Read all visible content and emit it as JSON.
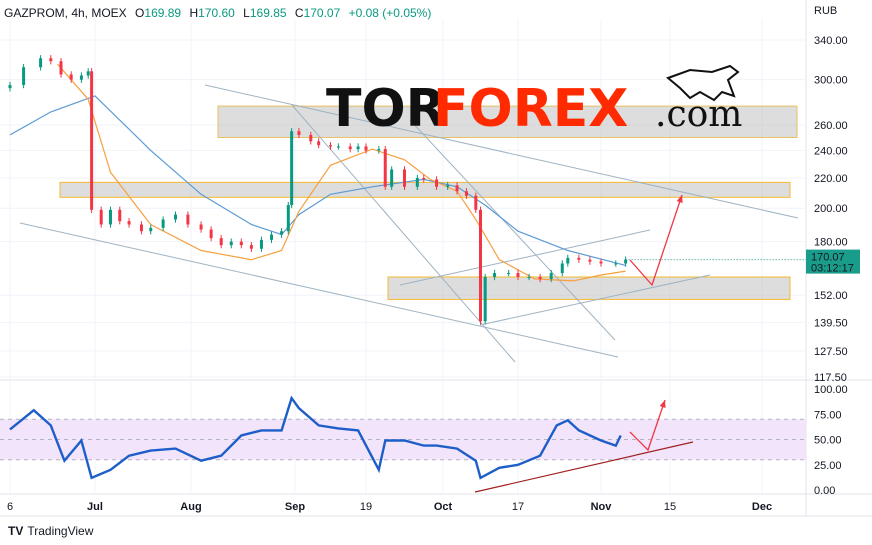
{
  "header": {
    "symbol": "GAZPROM, 4h, MOEX",
    "open_label": "O",
    "open": "169.89",
    "high_label": "H",
    "high": "170.60",
    "low_label": "L",
    "low": "169.85",
    "close_label": "C",
    "close": "170.07",
    "change": "+0.08 (+0.05%)"
  },
  "watermark": {
    "part1": "TOR",
    "part2": "FOREX",
    ".com": ".com",
    "colors": {
      "part1": "#111111",
      "part2": "#ff2a00"
    }
  },
  "footer": {
    "brand": "TradingView"
  },
  "colors": {
    "up": "#089981",
    "down": "#f23645",
    "ma_fast": "#f7a040",
    "ma_slow": "#5b9bd5",
    "rsi": "#1e5ec8",
    "arrow": "#f23645",
    "price_label": "#1a9c8a",
    "rsi_band": "#f1e4fb"
  },
  "chart_data": [
    {
      "type": "candlestick",
      "currency": "RUB",
      "y_scale": "log",
      "y_ticks": [
        "340.00",
        "300.00",
        "260.00",
        "240.00",
        "220.00",
        "200.00",
        "180.00",
        "152.00",
        "139.50",
        "127.50",
        "117.50"
      ],
      "x_ticks": [
        "6",
        "Jul",
        "Aug",
        "Sep",
        "19",
        "Oct",
        "17",
        "Nov",
        "15",
        "Dec"
      ],
      "last_price": "170.07",
      "countdown": "03:12:17",
      "grid": true,
      "close": [
        [
          "06-06",
          295
        ],
        [
          "06-10",
          312
        ],
        [
          "06-15",
          321
        ],
        [
          "06-18",
          318
        ],
        [
          "06-21",
          305
        ],
        [
          "06-24",
          300
        ],
        [
          "06-27",
          304
        ],
        [
          "06-29",
          308
        ],
        [
          "06-30",
          199
        ],
        [
          "07-03",
          190
        ],
        [
          "07-06",
          199
        ],
        [
          "07-09",
          192
        ],
        [
          "07-12",
          190
        ],
        [
          "07-16",
          186
        ],
        [
          "07-19",
          188
        ],
        [
          "07-23",
          193
        ],
        [
          "07-27",
          196
        ],
        [
          "07-31",
          190
        ],
        [
          "08-04",
          187
        ],
        [
          "08-07",
          182
        ],
        [
          "08-10",
          178
        ],
        [
          "08-13",
          180
        ],
        [
          "08-16",
          178
        ],
        [
          "08-19",
          176
        ],
        [
          "08-22",
          181
        ],
        [
          "08-25",
          184
        ],
        [
          "08-28",
          186
        ],
        [
          "08-30",
          202
        ],
        [
          "08-31",
          255
        ],
        [
          "09-02",
          252
        ],
        [
          "09-05",
          247
        ],
        [
          "09-07",
          244
        ],
        [
          "09-10",
          243
        ],
        [
          "09-12",
          243
        ],
        [
          "09-15",
          241
        ],
        [
          "09-17",
          243
        ],
        [
          "09-19",
          240
        ],
        [
          "09-21",
          241
        ],
        [
          "09-22",
          214
        ],
        [
          "09-23",
          226
        ],
        [
          "09-25",
          214
        ],
        [
          "09-27",
          220
        ],
        [
          "09-28",
          219
        ],
        [
          "09-30",
          214
        ],
        [
          "10-02",
          215
        ],
        [
          "10-04",
          211
        ],
        [
          "10-06",
          208
        ],
        [
          "10-08",
          199
        ],
        [
          "10-09",
          140
        ],
        [
          "10-10",
          161
        ],
        [
          "10-12",
          163
        ],
        [
          "10-15",
          163
        ],
        [
          "10-17",
          161
        ],
        [
          "10-19",
          161
        ],
        [
          "10-21",
          160
        ],
        [
          "10-23",
          163
        ],
        [
          "10-25",
          168
        ],
        [
          "10-26",
          171
        ],
        [
          "10-28",
          170
        ],
        [
          "10-30",
          169
        ],
        [
          "11-01",
          168
        ],
        [
          "11-04",
          168
        ],
        [
          "11-06",
          170.07
        ]
      ],
      "ma_fast": [
        [
          "06-20",
          315
        ],
        [
          "06-29",
          282
        ],
        [
          "07-06",
          224
        ],
        [
          "07-19",
          190
        ],
        [
          "08-04",
          175
        ],
        [
          "08-19",
          170
        ],
        [
          "08-28",
          175
        ],
        [
          "09-02",
          198
        ],
        [
          "09-10",
          229
        ],
        [
          "09-20",
          241
        ],
        [
          "09-25",
          233
        ],
        [
          "09-29",
          219
        ],
        [
          "10-04",
          211
        ],
        [
          "10-08",
          193
        ],
        [
          "10-13",
          170
        ],
        [
          "10-20",
          160
        ],
        [
          "10-27",
          159
        ],
        [
          "11-01",
          162
        ],
        [
          "11-06",
          164
        ]
      ],
      "ma_slow": [
        [
          "06-06",
          252
        ],
        [
          "06-18",
          271
        ],
        [
          "07-01",
          285
        ],
        [
          "07-19",
          240
        ],
        [
          "08-04",
          209
        ],
        [
          "08-19",
          190
        ],
        [
          "08-28",
          184
        ],
        [
          "09-02",
          196
        ],
        [
          "09-10",
          209
        ],
        [
          "09-20",
          214
        ],
        [
          "09-28",
          219
        ],
        [
          "10-04",
          214
        ],
        [
          "10-10",
          202
        ],
        [
          "10-17",
          186
        ],
        [
          "10-26",
          175
        ],
        [
          "11-06",
          167
        ]
      ],
      "zones": [
        {
          "from": 276,
          "to": 250
        },
        {
          "from": 217,
          "to": 207
        },
        {
          "from": 161,
          "to": 150
        }
      ]
    },
    {
      "type": "line",
      "indicator": "RSI",
      "y_ticks": [
        "100.00",
        "75.00",
        "50.00",
        "25.00",
        "0.00"
      ],
      "ylim": [
        0,
        100
      ],
      "band": [
        30,
        70
      ],
      "values": [
        [
          "06-06",
          60
        ],
        [
          "06-13",
          79
        ],
        [
          "06-18",
          64
        ],
        [
          "06-22",
          29
        ],
        [
          "06-27",
          49
        ],
        [
          "06-30",
          12
        ],
        [
          "07-06",
          20
        ],
        [
          "07-12",
          34
        ],
        [
          "07-19",
          39
        ],
        [
          "07-27",
          41
        ],
        [
          "08-04",
          29
        ],
        [
          "08-10",
          34
        ],
        [
          "08-16",
          54
        ],
        [
          "08-22",
          59
        ],
        [
          "08-28",
          59
        ],
        [
          "08-31",
          91
        ],
        [
          "09-02",
          81
        ],
        [
          "09-07",
          64
        ],
        [
          "09-12",
          61
        ],
        [
          "09-17",
          59
        ],
        [
          "09-21",
          20
        ],
        [
          "09-22",
          49
        ],
        [
          "09-25",
          49
        ],
        [
          "09-28",
          44
        ],
        [
          "09-30",
          44
        ],
        [
          "10-04",
          41
        ],
        [
          "10-08",
          29
        ],
        [
          "10-09",
          12
        ],
        [
          "10-13",
          22
        ],
        [
          "10-17",
          25
        ],
        [
          "10-21",
          34
        ],
        [
          "10-24",
          64
        ],
        [
          "10-26",
          69
        ],
        [
          "10-28",
          59
        ],
        [
          "11-01",
          49
        ],
        [
          "11-04",
          44
        ],
        [
          "11-05",
          54
        ]
      ]
    }
  ]
}
